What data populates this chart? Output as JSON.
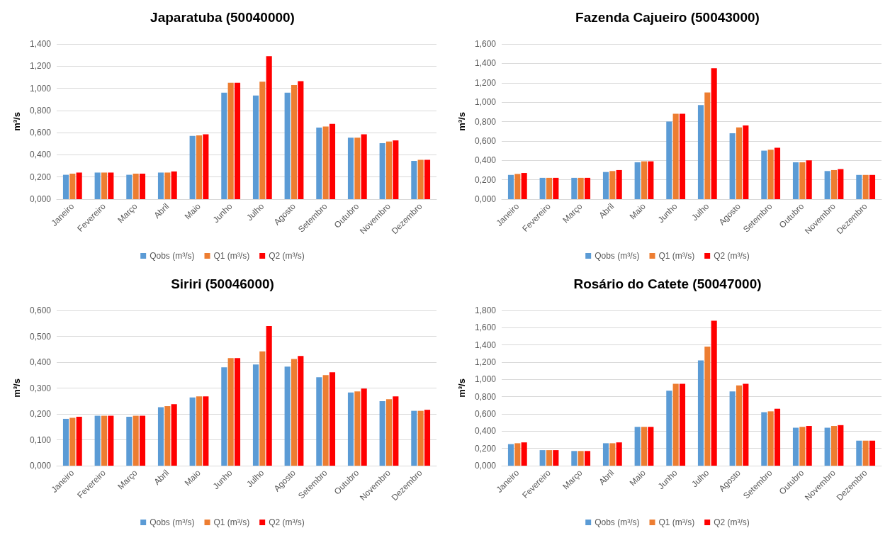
{
  "chart_data": [
    {
      "type": "bar",
      "title": "Japaratuba (50040000)",
      "ylabel": "m³/s",
      "categories": [
        "Janeiro",
        "Fevereiro",
        "Março",
        "Abril",
        "Maio",
        "Junho",
        "Julho",
        "Agosto",
        "Setembro",
        "Outubro",
        "Novembro",
        "Dezembro"
      ],
      "series": [
        {
          "name": "Qobs (m³/s)",
          "color": "#5b9bd5",
          "values": [
            0.22,
            0.24,
            0.22,
            0.24,
            0.57,
            0.96,
            0.935,
            0.96,
            0.645,
            0.555,
            0.505,
            0.345
          ]
        },
        {
          "name": "Q1 (m³/s)",
          "color": "#ed7d31",
          "values": [
            0.23,
            0.24,
            0.23,
            0.24,
            0.575,
            1.05,
            1.06,
            1.03,
            0.655,
            0.555,
            0.52,
            0.355
          ]
        },
        {
          "name": "Q2 (m³/s)",
          "color": "#ff0000",
          "values": [
            0.24,
            0.24,
            0.23,
            0.25,
            0.585,
            1.05,
            1.29,
            1.065,
            0.68,
            0.585,
            0.53,
            0.355
          ]
        }
      ],
      "ylim": [
        0,
        1.4
      ],
      "yticks": [
        {
          "value": 0,
          "label": "0,000"
        },
        {
          "value": 0.2,
          "label": "0,200"
        },
        {
          "value": 0.4,
          "label": "0,400"
        },
        {
          "value": 0.6,
          "label": "0,600"
        },
        {
          "value": 0.8,
          "label": "0,800"
        },
        {
          "value": 1,
          "label": "1,000"
        },
        {
          "value": 1.2,
          "label": "1,200"
        },
        {
          "value": 1.4,
          "label": "1,400"
        }
      ],
      "grid": "y",
      "legend": "bottom"
    },
    {
      "type": "bar",
      "title": "Fazenda Cajueiro (50043000)",
      "ylabel": "m³/s",
      "categories": [
        "Janeiro",
        "Fevereiro",
        "Março",
        "Abril",
        "Maio",
        "Junho",
        "Julho",
        "Agosto",
        "Setembro",
        "Outubro",
        "Novembro",
        "Dezembro"
      ],
      "series": [
        {
          "name": "Qobs (m³/s)",
          "color": "#5b9bd5",
          "values": [
            0.25,
            0.22,
            0.22,
            0.28,
            0.38,
            0.8,
            0.97,
            0.68,
            0.5,
            0.38,
            0.29,
            0.25
          ]
        },
        {
          "name": "Q1 (m³/s)",
          "color": "#ed7d31",
          "values": [
            0.26,
            0.22,
            0.22,
            0.29,
            0.39,
            0.88,
            1.1,
            0.74,
            0.51,
            0.38,
            0.3,
            0.25
          ]
        },
        {
          "name": "Q2 (m³/s)",
          "color": "#ff0000",
          "values": [
            0.27,
            0.22,
            0.22,
            0.3,
            0.39,
            0.88,
            1.35,
            0.76,
            0.53,
            0.4,
            0.31,
            0.25
          ]
        }
      ],
      "ylim": [
        0,
        1.6
      ],
      "yticks": [
        {
          "value": 0,
          "label": "0,000"
        },
        {
          "value": 0.2,
          "label": "0,200"
        },
        {
          "value": 0.4,
          "label": "0,400"
        },
        {
          "value": 0.6,
          "label": "0,600"
        },
        {
          "value": 0.8,
          "label": "0,800"
        },
        {
          "value": 1,
          "label": "1,000"
        },
        {
          "value": 1.2,
          "label": "1,200"
        },
        {
          "value": 1.4,
          "label": "1,400"
        },
        {
          "value": 1.6,
          "label": "1,600"
        }
      ],
      "grid": "y",
      "legend": "bottom"
    },
    {
      "type": "bar",
      "title": "Siriri (50046000)",
      "ylabel": "m³/s",
      "categories": [
        "Janeiro",
        "Fevereiro",
        "Março",
        "Abril",
        "Maio",
        "Junho",
        "Julho",
        "Agosto",
        "Setembro",
        "Outubro",
        "Novembro",
        "Dezembro"
      ],
      "series": [
        {
          "name": "Qobs (m³/s)",
          "color": "#5b9bd5",
          "values": [
            0.181,
            0.193,
            0.189,
            0.226,
            0.264,
            0.38,
            0.391,
            0.383,
            0.342,
            0.283,
            0.249,
            0.212
          ]
        },
        {
          "name": "Q1 (m³/s)",
          "color": "#ed7d31",
          "values": [
            0.185,
            0.193,
            0.193,
            0.23,
            0.268,
            0.416,
            0.442,
            0.412,
            0.35,
            0.287,
            0.257,
            0.212
          ]
        },
        {
          "name": "Q2 (m³/s)",
          "color": "#ff0000",
          "values": [
            0.189,
            0.193,
            0.193,
            0.238,
            0.268,
            0.416,
            0.54,
            0.424,
            0.361,
            0.298,
            0.268,
            0.216
          ]
        }
      ],
      "ylim": [
        0,
        0.6
      ],
      "yticks": [
        {
          "value": 0,
          "label": "0,000"
        },
        {
          "value": 0.1,
          "label": "0,100"
        },
        {
          "value": 0.2,
          "label": "0,200"
        },
        {
          "value": 0.3,
          "label": "0,300"
        },
        {
          "value": 0.4,
          "label": "0,400"
        },
        {
          "value": 0.5,
          "label": "0,500"
        },
        {
          "value": 0.6,
          "label": "0,600"
        }
      ],
      "grid": "y",
      "legend": "bottom"
    },
    {
      "type": "bar",
      "title": "Rosário do Catete (50047000)",
      "ylabel": "m³/s",
      "categories": [
        "Janeiro",
        "Fevereiro",
        "Março",
        "Abril",
        "Maio",
        "Junho",
        "Julho",
        "Agosto",
        "Setembro",
        "Outubro",
        "Novembro",
        "Dezembro"
      ],
      "series": [
        {
          "name": "Qobs (m³/s)",
          "color": "#5b9bd5",
          "values": [
            0.25,
            0.18,
            0.17,
            0.26,
            0.45,
            0.87,
            1.22,
            0.86,
            0.62,
            0.44,
            0.44,
            0.29
          ]
        },
        {
          "name": "Q1 (m³/s)",
          "color": "#ed7d31",
          "values": [
            0.26,
            0.18,
            0.17,
            0.26,
            0.45,
            0.95,
            1.38,
            0.93,
            0.63,
            0.45,
            0.46,
            0.29
          ]
        },
        {
          "name": "Q2 (m³/s)",
          "color": "#ff0000",
          "values": [
            0.27,
            0.18,
            0.17,
            0.27,
            0.45,
            0.95,
            1.68,
            0.95,
            0.66,
            0.46,
            0.47,
            0.29
          ]
        }
      ],
      "ylim": [
        0,
        1.8
      ],
      "yticks": [
        {
          "value": 0,
          "label": "0,000"
        },
        {
          "value": 0.2,
          "label": "0,200"
        },
        {
          "value": 0.4,
          "label": "0,400"
        },
        {
          "value": 0.6,
          "label": "0,600"
        },
        {
          "value": 0.8,
          "label": "0,800"
        },
        {
          "value": 1,
          "label": "1,000"
        },
        {
          "value": 1.2,
          "label": "1,200"
        },
        {
          "value": 1.4,
          "label": "1,400"
        },
        {
          "value": 1.6,
          "label": "1,600"
        },
        {
          "value": 1.8,
          "label": "1,800"
        }
      ],
      "grid": "y",
      "legend": "bottom"
    }
  ]
}
